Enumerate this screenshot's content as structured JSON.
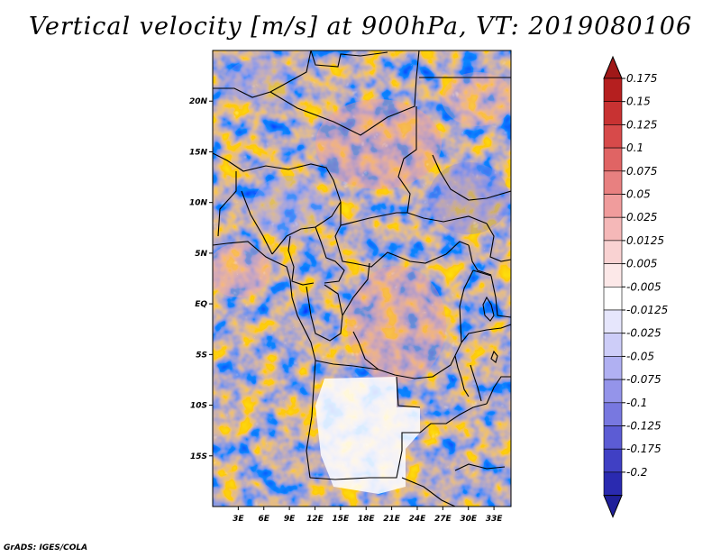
{
  "title": "Vertical velocity [m/s] at 900hPa, VT: 2019080106",
  "credit": "GrADS: IGES/COLA",
  "map": {
    "region": "Central Africa",
    "lat_range": [
      -20,
      25
    ],
    "lon_range": [
      0,
      35
    ],
    "lat_ticks": [
      {
        "value": 20,
        "label": "20N"
      },
      {
        "value": 15,
        "label": "15N"
      },
      {
        "value": 10,
        "label": "10N"
      },
      {
        "value": 5,
        "label": "5N"
      },
      {
        "value": 0,
        "label": "EQ"
      },
      {
        "value": -5,
        "label": "5S"
      },
      {
        "value": -10,
        "label": "10S"
      },
      {
        "value": -15,
        "label": "15S"
      }
    ],
    "lon_ticks": [
      {
        "value": 3,
        "label": "3E"
      },
      {
        "value": 6,
        "label": "6E"
      },
      {
        "value": 9,
        "label": "9E"
      },
      {
        "value": 12,
        "label": "12E"
      },
      {
        "value": 15,
        "label": "15E"
      },
      {
        "value": 18,
        "label": "18E"
      },
      {
        "value": 21,
        "label": "21E"
      },
      {
        "value": 24,
        "label": "24E"
      },
      {
        "value": 27,
        "label": "27E"
      },
      {
        "value": 30,
        "label": "30E"
      },
      {
        "value": 33,
        "label": "33E"
      }
    ]
  },
  "colorbar": {
    "units": "m/s",
    "levels": [
      {
        "label": "0.175",
        "color": "#b51f1f"
      },
      {
        "label": "0.15",
        "color": "#c83232"
      },
      {
        "label": "0.125",
        "color": "#d74a4a"
      },
      {
        "label": "0.1",
        "color": "#e06464"
      },
      {
        "label": "0.075",
        "color": "#e88080"
      },
      {
        "label": "0.05",
        "color": "#f09c9c"
      },
      {
        "label": "0.025",
        "color": "#f5b8b8"
      },
      {
        "label": "0.0125",
        "color": "#f9d2d2"
      },
      {
        "label": "0.005",
        "color": "#fce8e8"
      },
      {
        "label": "-0.005",
        "color": "#ffffff"
      },
      {
        "label": "-0.0125",
        "color": "#e6e6fc"
      },
      {
        "label": "-0.025",
        "color": "#cdcdf8"
      },
      {
        "label": "-0.05",
        "color": "#b0b0f2"
      },
      {
        "label": "-0.075",
        "color": "#9494ea"
      },
      {
        "label": "-0.1",
        "color": "#7878e0"
      },
      {
        "label": "-0.125",
        "color": "#5c5cd4"
      },
      {
        "label": "-0.175",
        "color": "#4040c4"
      },
      {
        "label": "-0.2",
        "color": "#2a2ab0"
      }
    ],
    "top_arrow_color": "#a01818",
    "bottom_arrow_color": "#20209a"
  }
}
